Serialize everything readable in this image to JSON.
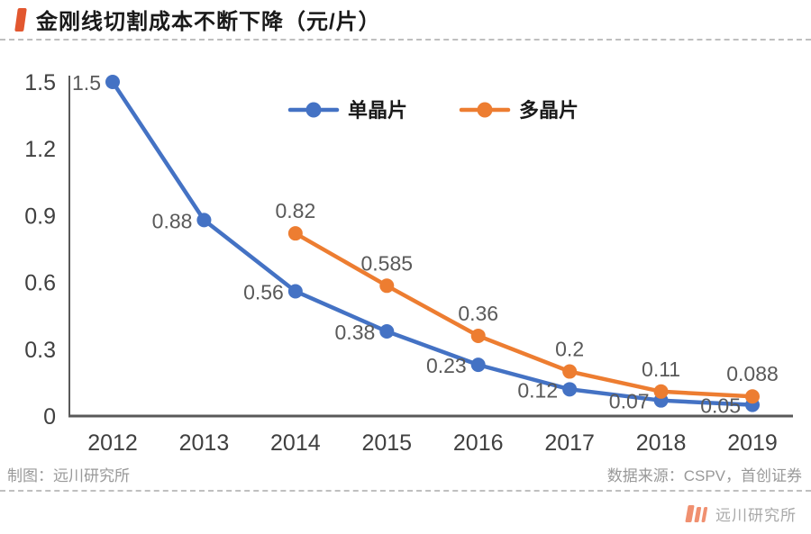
{
  "header": {
    "title": "金刚线切割成本不断下降（元/片）"
  },
  "chart_data": {
    "type": "line",
    "title": "金刚线切割成本不断下降（元/片）",
    "x": [
      2012,
      2013,
      2014,
      2015,
      2016,
      2017,
      2018,
      2019
    ],
    "series": [
      {
        "name": "单晶片",
        "color": "#4472C4",
        "values": [
          1.5,
          0.88,
          0.56,
          0.38,
          0.23,
          0.12,
          0.07,
          0.05
        ],
        "label_position": "left"
      },
      {
        "name": "多晶片",
        "color": "#ED7D31",
        "values": [
          null,
          null,
          0.82,
          0.585,
          0.36,
          0.2,
          0.11,
          0.088
        ],
        "label_position": "above"
      }
    ],
    "xlabel": "",
    "ylabel": "",
    "ylim": [
      0,
      1.5
    ],
    "y_ticks": [
      0,
      0.3,
      0.6,
      0.9,
      1.2,
      1.5
    ],
    "grid": false,
    "legend_position": "top-center"
  },
  "footer": {
    "left": "制图：远川研究所",
    "right": "数据来源：CSPV，首创证券"
  },
  "logo": {
    "text": "远川研究所"
  },
  "colors": {
    "accent": "#E2572F",
    "axis": "#595959",
    "tick_label": "#404040",
    "data_label": "#595959",
    "legend_text": "#1a1a1a",
    "footer_text": "#999999",
    "logo_bar": "#F09070",
    "logo_text": "#A8A8A8",
    "dash_line": "#BFBFBF"
  }
}
